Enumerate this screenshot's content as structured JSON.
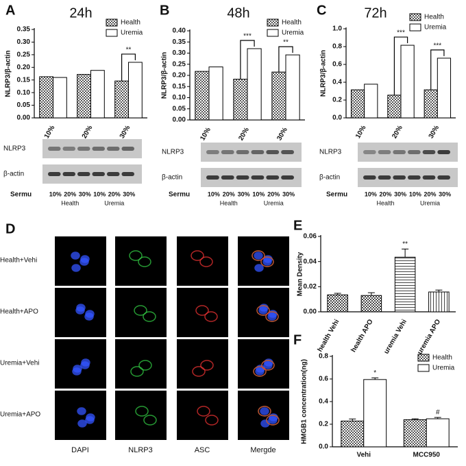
{
  "chart_data": [
    {
      "type": "bar",
      "label": "A",
      "title": "24h",
      "y_label": "NLRP3/β-actin",
      "categories": [
        "10%",
        "20%",
        "30%"
      ],
      "series": [
        {
          "name": "Health",
          "color": "#555555",
          "pattern": "checker",
          "values": [
            0.163,
            0.172,
            0.146
          ]
        },
        {
          "name": "Uremia",
          "color": "#ffffff",
          "values": [
            0.16,
            0.188,
            0.22
          ]
        }
      ],
      "ylim": [
        0,
        0.35
      ],
      "yticks": [
        {
          "value": 0,
          "label": "0.00"
        },
        0.05,
        {
          "value": 0.1,
          "label": "0.10"
        },
        0.15,
        {
          "value": 0.2,
          "label": "0.20"
        },
        0.25,
        {
          "value": 0.3,
          "label": "0.30"
        },
        0.35
      ],
      "annotations": [
        {
          "text": "**",
          "category": "30%"
        }
      ]
    },
    {
      "type": "bar",
      "label": "B",
      "title": "48h",
      "y_label": "NLRP3/β-actin",
      "categories": [
        "10%",
        "20%",
        "30%"
      ],
      "series": [
        {
          "name": "Health",
          "color": "#555555",
          "pattern": "checker",
          "values": [
            0.218,
            0.183,
            0.215
          ]
        },
        {
          "name": "Uremia",
          "color": "#ffffff",
          "values": [
            0.238,
            0.32,
            0.292
          ]
        }
      ],
      "ylim": [
        0,
        0.4
      ],
      "yticks": [
        {
          "value": 0,
          "label": "0.00"
        },
        0.05,
        {
          "value": 0.1,
          "label": "0.10"
        },
        0.15,
        {
          "value": 0.2,
          "label": "0.20"
        },
        0.25,
        {
          "value": 0.3,
          "label": "0.30"
        },
        0.35,
        {
          "value": 0.4,
          "label": "0.40"
        }
      ],
      "annotations": [
        {
          "text": "***",
          "category": "20%"
        },
        {
          "text": "**",
          "category": "30%"
        }
      ]
    },
    {
      "type": "bar",
      "label": "C",
      "title": "72h",
      "y_label": "NLRP3/β-actin",
      "categories": [
        "10%",
        "20%",
        "30%"
      ],
      "series": [
        {
          "name": "Health",
          "color": "#555555",
          "pattern": "checker",
          "values": [
            0.315,
            0.255,
            0.315
          ]
        },
        {
          "name": "Uremia",
          "color": "#ffffff",
          "values": [
            0.378,
            0.815,
            0.67
          ]
        }
      ],
      "ylim": [
        0,
        1.0
      ],
      "yticks": [
        {
          "value": 0,
          "label": "0.0"
        },
        0.2,
        0.4,
        0.6,
        0.8,
        {
          "value": 1.0,
          "label": "1.0"
        }
      ],
      "annotations": [
        {
          "text": "***",
          "category": "20%"
        },
        {
          "text": "***",
          "category": "30%"
        }
      ]
    },
    {
      "type": "bar",
      "label": "E",
      "y_label": "Mean Density",
      "categories": [
        "health Vehi",
        "health APO",
        "uremia Vehi",
        "uremia APO"
      ],
      "values": [
        0.0135,
        0.013,
        0.0435,
        0.0158
      ],
      "errors": [
        0.0012,
        0.0022,
        0.0065,
        0.0015
      ],
      "color": "#444444",
      "patterns": [
        "checker",
        "checker",
        "hlines",
        "vlines"
      ],
      "ylim": [
        0,
        0.06
      ],
      "yticks": [
        {
          "value": 0,
          "label": "0.00"
        },
        0.02,
        0.04,
        {
          "value": 0.06,
          "label": "0.06"
        }
      ],
      "annotations": [
        {
          "text": "**",
          "category": "uremia Vehi"
        }
      ]
    },
    {
      "type": "bar",
      "label": "F",
      "y_label": "HMGB1 concentration(ng)",
      "categories": [
        "Vehi",
        "MCC950"
      ],
      "series": [
        {
          "name": "Health",
          "color": "#555555",
          "pattern": "checker",
          "values": [
            0.228,
            0.24
          ],
          "errors": [
            0.018,
            0.008
          ]
        },
        {
          "name": "Uremia",
          "color": "#ffffff",
          "values": [
            0.595,
            0.248
          ],
          "errors": [
            0.015,
            0.012
          ]
        }
      ],
      "ylim": [
        0,
        0.8
      ],
      "yticks": [
        {
          "value": 0,
          "label": "0.0"
        },
        0.2,
        0.4,
        0.6,
        0.8
      ],
      "annotations": [
        {
          "text": "*",
          "category": "Vehi"
        },
        {
          "text": "#",
          "category": "MCC950"
        }
      ]
    }
  ],
  "blots": [
    {
      "rows": [
        "NLRP3",
        "β-actin"
      ],
      "lane_title": "Sermu",
      "lanes": [
        "10%",
        "20%",
        "30%",
        "10%",
        "20%",
        "30%"
      ],
      "groups": [
        "Health",
        "Uremia"
      ]
    },
    {
      "rows": [
        "NLRP3",
        "β-actin"
      ],
      "lane_title": "Sermu",
      "lanes": [
        "10%",
        "20%",
        "30%",
        "10%",
        "20%",
        "30%"
      ],
      "groups": [
        "Health",
        "Uremia"
      ]
    },
    {
      "rows": [
        "NLRP3",
        "β-actin"
      ],
      "lane_title": "Sermu",
      "lanes": [
        "10%",
        "20%",
        "30%",
        "10%",
        "20%",
        "30%"
      ],
      "groups": [
        "Health",
        "Uremia"
      ]
    }
  ],
  "panel_d": {
    "label": "D",
    "rows": [
      "Health+Vehi",
      "Health+APO",
      "Uremia+Vehi",
      "Uremia+APO"
    ],
    "columns": [
      "DAPI",
      "NLRP3",
      "ASC",
      "Mergde"
    ]
  }
}
